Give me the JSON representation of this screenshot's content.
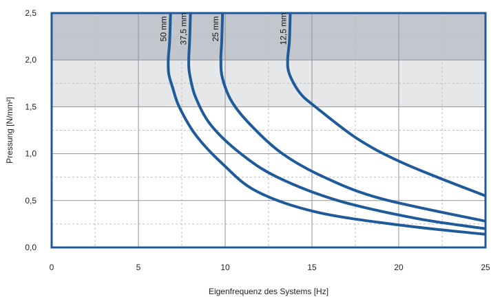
{
  "chart_data": {
    "type": "line",
    "xlabel": "Eigenfrequenz des Systems [Hz]",
    "ylabel": "Pressung [N/mm²]",
    "xlim": [
      0,
      25
    ],
    "ylim": [
      0,
      2.5
    ],
    "x_ticks": [
      "0",
      "5",
      "10",
      "15",
      "20",
      "25"
    ],
    "y_ticks": [
      "0,0",
      "0,5",
      "1,0",
      "1,5",
      "2,0",
      "2,5"
    ],
    "grid": true,
    "bands": [
      {
        "from": 2.0,
        "to": 2.5,
        "color": "#c3c7cd"
      },
      {
        "from": 1.5,
        "to": 2.0,
        "color": "#e6e7e9"
      }
    ],
    "line_color": "#1f5a9a",
    "frame_color": "#1f5a9a",
    "series": [
      {
        "name": "50 mm",
        "points": [
          [
            6.85,
            2.5
          ],
          [
            6.8,
            2.2
          ],
          [
            6.72,
            2.0
          ],
          [
            6.75,
            1.85
          ],
          [
            6.98,
            1.7
          ],
          [
            7.35,
            1.5
          ],
          [
            8.3,
            1.2
          ],
          [
            9.8,
            0.9
          ],
          [
            11.8,
            0.6
          ],
          [
            15.2,
            0.38
          ],
          [
            20.0,
            0.24
          ],
          [
            25.0,
            0.14
          ]
        ]
      },
      {
        "name": "37,5 mm",
        "points": [
          [
            8.0,
            2.5
          ],
          [
            7.95,
            2.2
          ],
          [
            7.9,
            2.0
          ],
          [
            7.95,
            1.85
          ],
          [
            8.3,
            1.6
          ],
          [
            9.2,
            1.3
          ],
          [
            10.9,
            1.0
          ],
          [
            13.0,
            0.75
          ],
          [
            16.5,
            0.5
          ],
          [
            21.0,
            0.31
          ],
          [
            25.0,
            0.2
          ]
        ]
      },
      {
        "name": "25 mm",
        "points": [
          [
            9.85,
            2.5
          ],
          [
            9.8,
            2.2
          ],
          [
            9.75,
            2.0
          ],
          [
            9.85,
            1.8
          ],
          [
            10.4,
            1.55
          ],
          [
            11.5,
            1.3
          ],
          [
            13.3,
            1.0
          ],
          [
            15.7,
            0.75
          ],
          [
            19.0,
            0.52
          ],
          [
            25.0,
            0.28
          ]
        ]
      },
      {
        "name": "12,5 mm",
        "points": [
          [
            13.75,
            2.5
          ],
          [
            13.7,
            2.2
          ],
          [
            13.6,
            2.0
          ],
          [
            13.7,
            1.85
          ],
          [
            14.3,
            1.65
          ],
          [
            15.2,
            1.5
          ],
          [
            17.7,
            1.15
          ],
          [
            20.5,
            0.88
          ],
          [
            25.0,
            0.55
          ]
        ]
      }
    ]
  }
}
